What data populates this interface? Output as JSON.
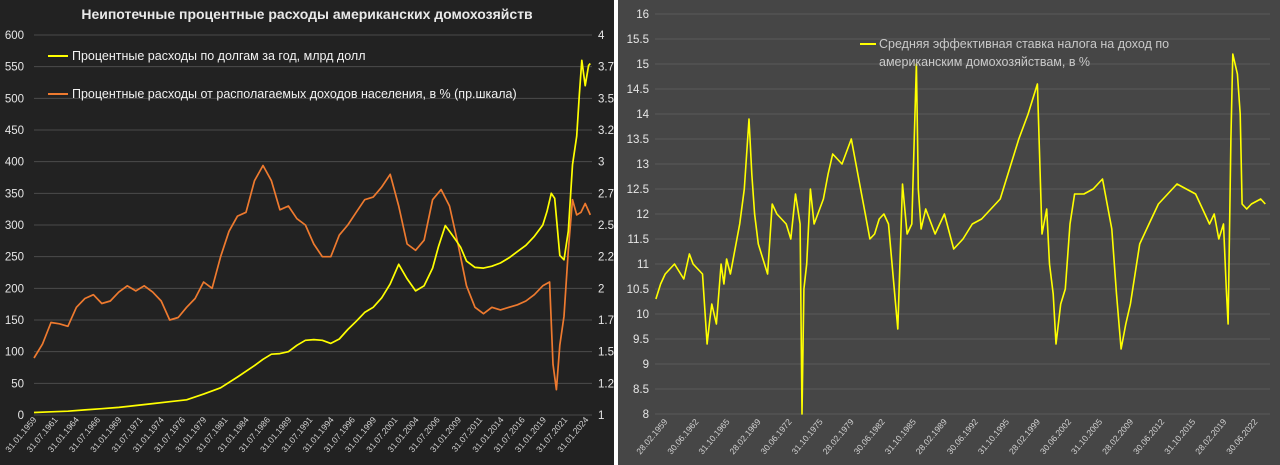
{
  "chart_data": [
    {
      "type": "line",
      "title": "Неипотечные процентные расходы американских домохозяйств",
      "ylim": [
        0,
        600
      ],
      "y2lim": [
        1,
        4
      ],
      "yticks": [
        "0",
        "50",
        "100",
        "150",
        "200",
        "250",
        "300",
        "350",
        "400",
        "450",
        "500",
        "550",
        "600"
      ],
      "y2ticks": [
        "1",
        "1.25",
        "1.5",
        "1.75",
        "2",
        "2.25",
        "2.5",
        "2.75",
        "3",
        "3.25",
        "3.5",
        "3.75",
        "4"
      ],
      "xticks": [
        "31.01.1959",
        "31.07.1961",
        "31.01.1964",
        "31.07.1966",
        "31.01.1969",
        "31.07.1971",
        "31.01.1974",
        "31.07.1976",
        "31.01.1979",
        "31.07.1981",
        "31.01.1984",
        "31.07.1986",
        "31.01.1989",
        "31.07.1991",
        "31.01.1994",
        "31.07.1996",
        "31.01.1999",
        "31.07.2001",
        "31.01.2004",
        "31.07.2006",
        "31.01.2009",
        "31.07.2011",
        "31.01.2014",
        "31.07.2016",
        "31.01.2019",
        "31.07.2021",
        "31.01.2024"
      ],
      "grid": true,
      "legend_position": "top-left",
      "series": [
        {
          "name": "Процентные расходы по долгам за год, млрд долл",
          "axis": "left",
          "color": "#ffff00",
          "x": [
            1959,
            1961,
            1963,
            1965,
            1967,
            1969,
            1971,
            1973,
            1975,
            1977,
            1979,
            1981,
            1983,
            1985,
            1986,
            1987,
            1988,
            1989,
            1990,
            1991,
            1992,
            1993,
            1994,
            1995,
            1996,
            1997,
            1998,
            1999,
            2000,
            2001,
            2002,
            2003,
            2004,
            2005,
            2006,
            2006.7,
            2007.5,
            2008,
            2008.8,
            2009.3,
            2010,
            2011,
            2012,
            2013,
            2014,
            2015,
            2016,
            2017,
            2018,
            2019,
            2019.5,
            2020,
            2020.4,
            2021,
            2021.5,
            2022,
            2022.5,
            2023,
            2023.3,
            2023.6,
            2024,
            2024.4,
            2024.6
          ],
          "values": [
            4,
            5,
            6,
            8,
            10,
            12,
            15,
            18,
            21,
            24,
            33,
            43,
            60,
            78,
            88,
            96,
            97,
            100,
            110,
            118,
            119,
            118,
            113,
            120,
            135,
            148,
            162,
            170,
            185,
            207,
            238,
            215,
            196,
            204,
            232,
            266,
            299,
            290,
            275,
            265,
            243,
            233,
            232,
            235,
            240,
            248,
            258,
            268,
            282,
            300,
            322,
            350,
            342,
            252,
            245,
            290,
            395,
            440,
            505,
            560,
            520,
            552,
            555
          ]
        },
        {
          "name": "Процентные расходы от располагаемых доходов населения, в % (пр.шкала)",
          "axis": "right",
          "color": "#ee7a2f",
          "x": [
            1959,
            1960,
            1961,
            1962,
            1963,
            1964,
            1965,
            1966,
            1967,
            1968,
            1969,
            1970,
            1971,
            1972,
            1973,
            1974,
            1975,
            1976,
            1977,
            1978,
            1979,
            1980,
            1981,
            1982,
            1983,
            1984,
            1985,
            1986,
            1987,
            1988,
            1989,
            1990,
            1991,
            1992,
            1993,
            1994,
            1995,
            1996,
            1997,
            1998,
            1999,
            2000,
            2001,
            2002,
            2003,
            2004,
            2005,
            2006,
            2007,
            2008,
            2009,
            2010,
            2011,
            2012,
            2013,
            2014,
            2015,
            2016,
            2017,
            2018,
            2019,
            2019.8,
            2020.2,
            2020.6,
            2021,
            2021.5,
            2022,
            2022.5,
            2023,
            2023.5,
            2024,
            2024.6
          ],
          "values": [
            1.45,
            1.56,
            1.73,
            1.72,
            1.7,
            1.85,
            1.92,
            1.95,
            1.88,
            1.9,
            1.97,
            2.02,
            1.98,
            2.02,
            1.97,
            1.9,
            1.75,
            1.77,
            1.85,
            1.92,
            2.05,
            2.0,
            2.25,
            2.45,
            2.57,
            2.6,
            2.85,
            2.97,
            2.85,
            2.62,
            2.65,
            2.55,
            2.5,
            2.35,
            2.25,
            2.25,
            2.42,
            2.5,
            2.6,
            2.7,
            2.72,
            2.8,
            2.9,
            2.65,
            2.35,
            2.3,
            2.38,
            2.7,
            2.78,
            2.65,
            2.35,
            2.02,
            1.85,
            1.8,
            1.85,
            1.83,
            1.85,
            1.87,
            1.9,
            1.95,
            2.02,
            2.05,
            1.4,
            1.2,
            1.55,
            1.78,
            2.3,
            2.7,
            2.58,
            2.6,
            2.67,
            2.58
          ]
        }
      ]
    },
    {
      "type": "line",
      "title": "",
      "ylim": [
        8,
        16
      ],
      "yticks": [
        "8",
        "8.5",
        "9",
        "9.5",
        "10",
        "10.5",
        "11",
        "11.5",
        "12",
        "12.5",
        "13",
        "13.5",
        "14",
        "14.5",
        "15",
        "15.5",
        "16"
      ],
      "xticks": [
        "28.02.1959",
        "30.06.1962",
        "31.10.1965",
        "28.02.1969",
        "30.06.1972",
        "31.10.1975",
        "28.02.1979",
        "30.06.1982",
        "31.10.1985",
        "28.02.1989",
        "30.06.1992",
        "31.10.1995",
        "28.02.1999",
        "30.06.2002",
        "31.10.2005",
        "28.02.2009",
        "30.06.2012",
        "31.10.2015",
        "28.02.2019",
        "30.06.2022"
      ],
      "grid": true,
      "legend_position": "top-right",
      "series": [
        {
          "name": "Средняя эффективная ставка налога на доход по американским домохозяйствам, в %",
          "axis": "left",
          "color": "#ffff00",
          "x": [
            1959,
            1959.5,
            1960,
            1961,
            1962,
            1962.6,
            1963,
            1964,
            1964.5,
            1964.8,
            1965,
            1965.5,
            1966,
            1966.3,
            1966.6,
            1967,
            1968,
            1968.5,
            1969,
            1969.3,
            1969.6,
            1970,
            1971,
            1971.5,
            1972,
            1973,
            1973.5,
            1974,
            1974.5,
            1974.7,
            1974.9,
            1975.2,
            1975.6,
            1976,
            1977,
            1977.5,
            1978,
            1979,
            1980,
            1981,
            1981.5,
            1982,
            1982.5,
            1983,
            1983.5,
            1984,
            1985,
            1985.5,
            1986,
            1986.5,
            1987,
            1987.2,
            1987.5,
            1988,
            1989,
            1990,
            1991,
            1992,
            1993,
            1994,
            1995,
            1996,
            1997,
            1998,
            1999,
            2000,
            2000.5,
            2001,
            2001.3,
            2001.7,
            2002,
            2002.5,
            2003,
            2003.5,
            2004,
            2005,
            2006,
            2007,
            2008,
            2008.5,
            2009,
            2009.5,
            2010,
            2011,
            2012,
            2013,
            2014,
            2015,
            2016,
            2017,
            2018,
            2018.5,
            2019,
            2019.5,
            2020,
            2020.3,
            2020.5,
            2020.8,
            2021,
            2021.5,
            2021.8,
            2022,
            2022.5,
            2023,
            2024,
            2024.5
          ],
          "values": [
            10.3,
            10.6,
            10.8,
            11.0,
            10.7,
            11.2,
            11.0,
            10.8,
            9.4,
            9.9,
            10.2,
            9.8,
            11.0,
            10.6,
            11.1,
            10.8,
            11.8,
            12.5,
            13.9,
            12.8,
            12.0,
            11.4,
            10.8,
            12.2,
            12.0,
            11.8,
            11.5,
            12.4,
            11.8,
            8.0,
            10.5,
            11.0,
            12.5,
            11.8,
            12.3,
            12.8,
            13.2,
            13.0,
            13.5,
            12.5,
            12.0,
            11.5,
            11.6,
            11.9,
            12.0,
            11.8,
            9.7,
            12.6,
            11.6,
            11.8,
            15.0,
            12.5,
            11.7,
            12.1,
            11.6,
            12.0,
            11.3,
            11.5,
            11.8,
            11.9,
            12.1,
            12.3,
            12.9,
            13.5,
            14.0,
            14.6,
            11.6,
            12.1,
            11.0,
            10.4,
            9.4,
            10.2,
            10.5,
            11.8,
            12.4,
            12.4,
            12.5,
            12.7,
            11.7,
            10.4,
            9.3,
            9.8,
            10.2,
            11.4,
            11.8,
            12.2,
            12.4,
            12.6,
            12.5,
            12.4,
            12.0,
            11.8,
            12.0,
            11.5,
            11.8,
            10.5,
            9.8,
            13.5,
            15.2,
            14.8,
            14.0,
            12.2,
            12.1,
            12.2,
            12.3,
            12.2
          ]
        }
      ]
    }
  ]
}
